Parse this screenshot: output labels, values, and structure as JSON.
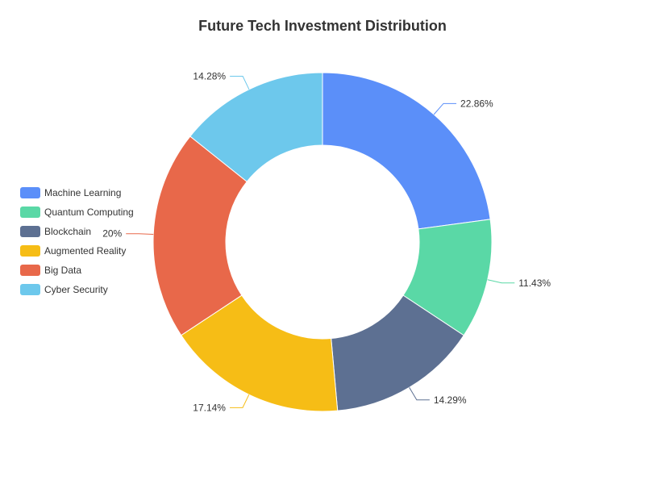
{
  "chart_data": {
    "type": "pie",
    "variant": "donut",
    "title": "Future Tech Investment Distribution",
    "legend_position": "left",
    "slices": [
      {
        "name": "Machine Learning",
        "value": 22.86,
        "label": "22.86%",
        "color": "#5B8FF9"
      },
      {
        "name": "Quantum Computing",
        "value": 11.43,
        "label": "11.43%",
        "color": "#5AD8A6"
      },
      {
        "name": "Blockchain",
        "value": 14.29,
        "label": "14.29%",
        "color": "#5D7092"
      },
      {
        "name": "Augmented Reality",
        "value": 17.14,
        "label": "17.14%",
        "color": "#F6BD16"
      },
      {
        "name": "Big Data",
        "value": 20,
        "label": "20%",
        "color": "#E8684A"
      },
      {
        "name": "Cyber Security",
        "value": 14.28,
        "label": "14.28%",
        "color": "#6DC8EC"
      }
    ]
  }
}
